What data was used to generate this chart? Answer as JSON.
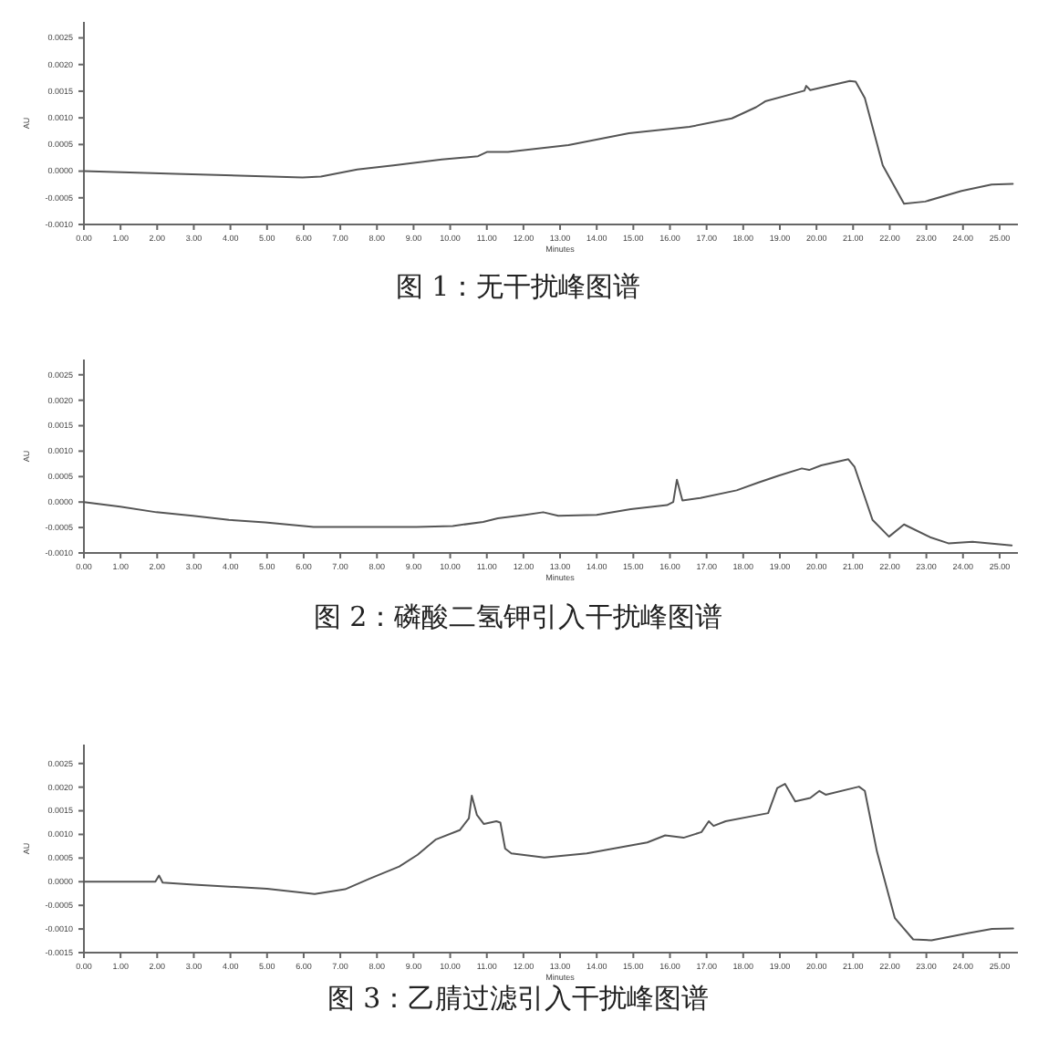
{
  "chart_data": [
    {
      "type": "line",
      "title": "图 1：无干扰峰图谱",
      "xlabel": "Minutes",
      "ylabel": "AU",
      "xlim": [
        0,
        25.5
      ],
      "ylim": [
        -0.001,
        0.0028
      ],
      "xticks": [
        {
          "value": 0,
          "label": "0.00"
        },
        {
          "value": 1,
          "label": "1.00"
        },
        {
          "value": 2,
          "label": "2.00"
        },
        {
          "value": 3,
          "label": "3.00"
        },
        {
          "value": 4,
          "label": "4.00"
        },
        {
          "value": 5,
          "label": "5.00"
        },
        {
          "value": 6,
          "label": "6.00"
        },
        {
          "value": 7,
          "label": "7.00"
        },
        {
          "value": 8,
          "label": "8.00"
        },
        {
          "value": 9,
          "label": "9.00"
        },
        {
          "value": 10,
          "label": "10.00"
        },
        {
          "value": 11,
          "label": "11.00"
        },
        {
          "value": 12,
          "label": "12.00"
        },
        {
          "value": 13,
          "label": "13.00"
        },
        {
          "value": 14,
          "label": "14.00"
        },
        {
          "value": 15,
          "label": "15.00"
        },
        {
          "value": 16,
          "label": "16.00"
        },
        {
          "value": 17,
          "label": "17.00"
        },
        {
          "value": 18,
          "label": "18.00"
        },
        {
          "value": 19,
          "label": "19.00"
        },
        {
          "value": 20,
          "label": "20.00"
        },
        {
          "value": 21,
          "label": "21.00"
        },
        {
          "value": 22,
          "label": "22.00"
        },
        {
          "value": 23,
          "label": "23.00"
        },
        {
          "value": 24,
          "label": "24.00"
        },
        {
          "value": 25,
          "label": "25.00"
        }
      ],
      "yticks": [
        {
          "value": -0.001,
          "label": "-0.0010"
        },
        -0.0005,
        {
          "value": 0,
          "label": "0.0000"
        },
        0.0005,
        {
          "value": 0.001,
          "label": "0.0010"
        },
        0.0015,
        {
          "value": 0.002,
          "label": "0.0020"
        },
        0.0025
      ],
      "series": [
        {
          "color": "#555555",
          "x": [
            0,
            2.5,
            5.97,
            6.47,
            7.46,
            8.45,
            9.77,
            10.76,
            11.0,
            11.58,
            13.23,
            14.88,
            16.53,
            17.69,
            18.35,
            18.6,
            19.67,
            19.72,
            19.83,
            20.91,
            21.07,
            21.32,
            21.81,
            22.39,
            22.97,
            23.96,
            24.78,
            25.36
          ],
          "values": [
            0,
            -5e-05,
            -0.00012,
            -0.0001,
            3e-05,
            0.00011,
            0.00022,
            0.00028,
            0.00036,
            0.00036,
            0.00049,
            0.00071,
            0.00083,
            0.00099,
            0.0012,
            0.00131,
            0.00151,
            0.0016,
            0.00152,
            0.00169,
            0.00168,
            0.00137,
            0.00011,
            -0.00061,
            -0.00057,
            -0.00037,
            -0.00025,
            -0.00024
          ]
        }
      ]
    },
    {
      "type": "line",
      "title": "图 2：磷酸二氢钾引入干扰峰图谱",
      "xlabel": "Minutes",
      "ylabel": "AU",
      "xlim": [
        0,
        25.5
      ],
      "ylim": [
        -0.001,
        0.0028
      ],
      "xticks": [
        {
          "value": 0,
          "label": "0.00"
        },
        {
          "value": 1,
          "label": "1.00"
        },
        {
          "value": 2,
          "label": "2.00"
        },
        {
          "value": 3,
          "label": "3.00"
        },
        {
          "value": 4,
          "label": "4.00"
        },
        {
          "value": 5,
          "label": "5.00"
        },
        {
          "value": 6,
          "label": "6.00"
        },
        {
          "value": 7,
          "label": "7.00"
        },
        {
          "value": 8,
          "label": "8.00"
        },
        {
          "value": 9,
          "label": "9.00"
        },
        {
          "value": 10,
          "label": "10.00"
        },
        {
          "value": 11,
          "label": "11.00"
        },
        {
          "value": 12,
          "label": "12.00"
        },
        {
          "value": 13,
          "label": "13.00"
        },
        {
          "value": 14,
          "label": "14.00"
        },
        {
          "value": 15,
          "label": "15.00"
        },
        {
          "value": 16,
          "label": "16.00"
        },
        {
          "value": 17,
          "label": "17.00"
        },
        {
          "value": 18,
          "label": "18.00"
        },
        {
          "value": 19,
          "label": "19.00"
        },
        {
          "value": 20,
          "label": "20.00"
        },
        {
          "value": 21,
          "label": "21.00"
        },
        {
          "value": 22,
          "label": "22.00"
        },
        {
          "value": 23,
          "label": "23.00"
        },
        {
          "value": 24,
          "label": "24.00"
        },
        {
          "value": 25,
          "label": "25.00"
        }
      ],
      "yticks": [
        {
          "value": -0.001,
          "label": "-0.0010"
        },
        -0.0005,
        {
          "value": 0,
          "label": "0.0000"
        },
        0.0005,
        {
          "value": 0.001,
          "label": "0.0010"
        },
        0.0015,
        {
          "value": 0.002,
          "label": "0.0020"
        },
        0.0025
      ],
      "series": [
        {
          "color": "#555555",
          "x": [
            0,
            0.99,
            1.98,
            2.97,
            3.96,
            4.95,
            6.27,
            9.08,
            10.07,
            10.9,
            11.3,
            12.05,
            12.54,
            12.95,
            14.0,
            14.93,
            15.92,
            16.09,
            16.19,
            16.34,
            16.83,
            17.82,
            18.4,
            18.97,
            19.6,
            19.8,
            20.13,
            20.87,
            21.04,
            21.53,
            21.98,
            22.39,
            23.1,
            23.6,
            24.26,
            25.33
          ],
          "values": [
            0,
            -9e-05,
            -0.0002,
            -0.00027,
            -0.00035,
            -0.0004,
            -0.00049,
            -0.00049,
            -0.00047,
            -0.00039,
            -0.00032,
            -0.00025,
            -0.0002,
            -0.00027,
            -0.00025,
            -0.00014,
            -6e-05,
            0,
            0.00044,
            3e-05,
            8e-05,
            0.00023,
            0.00038,
            0.00052,
            0.00066,
            0.00063,
            0.00072,
            0.00084,
            0.00069,
            -0.00035,
            -0.00068,
            -0.00044,
            -0.00069,
            -0.00081,
            -0.00078,
            -0.00085
          ]
        }
      ]
    },
    {
      "type": "line",
      "title": "图 3：乙腈过滤引入干扰峰图谱",
      "xlabel": "Minutes",
      "ylabel": "AU",
      "xlim": [
        0,
        25.5
      ],
      "ylim": [
        -0.0015,
        0.0029
      ],
      "xticks": [
        {
          "value": 0,
          "label": "0.00"
        },
        {
          "value": 1,
          "label": "1.00"
        },
        {
          "value": 2,
          "label": "2.00"
        },
        {
          "value": 3,
          "label": "3.00"
        },
        {
          "value": 4,
          "label": "4.00"
        },
        {
          "value": 5,
          "label": "5.00"
        },
        {
          "value": 6,
          "label": "6.00"
        },
        {
          "value": 7,
          "label": "7.00"
        },
        {
          "value": 8,
          "label": "8.00"
        },
        {
          "value": 9,
          "label": "9.00"
        },
        {
          "value": 10,
          "label": "10.00"
        },
        {
          "value": 11,
          "label": "11.00"
        },
        {
          "value": 12,
          "label": "12.00"
        },
        {
          "value": 13,
          "label": "13.00"
        },
        {
          "value": 14,
          "label": "14.00"
        },
        {
          "value": 15,
          "label": "15.00"
        },
        {
          "value": 16,
          "label": "16.00"
        },
        {
          "value": 17,
          "label": "17.00"
        },
        {
          "value": 18,
          "label": "18.00"
        },
        {
          "value": 19,
          "label": "19.00"
        },
        {
          "value": 20,
          "label": "20.00"
        },
        {
          "value": 21,
          "label": "21.00"
        },
        {
          "value": 22,
          "label": "22.00"
        },
        {
          "value": 23,
          "label": "23.00"
        },
        {
          "value": 24,
          "label": "24.00"
        },
        {
          "value": 25,
          "label": "25.00"
        }
      ],
      "yticks": [
        -0.0015,
        {
          "value": -0.001,
          "label": "-0.0010"
        },
        -0.0005,
        {
          "value": 0,
          "label": "0.0000"
        },
        0.0005,
        {
          "value": 0.001,
          "label": "0.0010"
        },
        0.0015,
        {
          "value": 0.002,
          "label": "0.0020"
        },
        0.0025
      ],
      "series": [
        {
          "color": "#555555",
          "x": [
            0,
            1.95,
            2.05,
            2.15,
            3,
            5,
            6.3,
            7.13,
            7.79,
            8.61,
            9.11,
            9.6,
            10.26,
            10.51,
            10.59,
            10.73,
            10.92,
            11.26,
            11.37,
            11.5,
            11.67,
            12.57,
            13.73,
            15.38,
            15.87,
            16.37,
            16.86,
            17.06,
            17.19,
            17.52,
            18.68,
            18.93,
            19.14,
            19.42,
            19.83,
            20.08,
            20.25,
            21.16,
            21.32,
            21.65,
            22.14,
            22.64,
            23.14,
            24.13,
            24.79,
            25.37
          ],
          "values": [
            0,
            0,
            0.00013,
            -2e-05,
            -6e-05,
            -0.00015,
            -0.00026,
            -0.00016,
            6e-05,
            0.00032,
            0.00057,
            0.00089,
            0.00109,
            0.00134,
            0.00182,
            0.00141,
            0.00122,
            0.00128,
            0.00125,
            0.0007,
            0.0006,
            0.00051,
            0.0006,
            0.00083,
            0.00098,
            0.00093,
            0.00105,
            0.00128,
            0.00118,
            0.00128,
            0.00145,
            0.00198,
            0.00207,
            0.0017,
            0.00177,
            0.00192,
            0.00184,
            0.00201,
            0.00192,
            0.00064,
            -0.00077,
            -0.00122,
            -0.00124,
            -0.00109,
            -0.001,
            -0.00099
          ]
        }
      ]
    }
  ]
}
